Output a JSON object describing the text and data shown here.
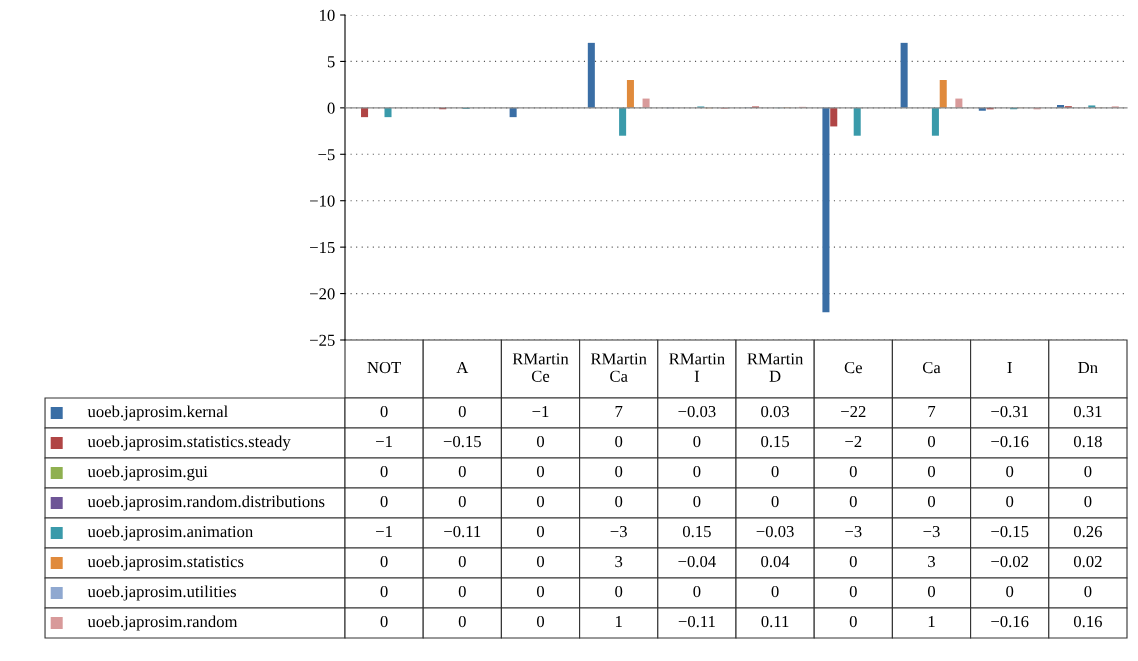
{
  "chart_data": {
    "type": "bar",
    "categories": [
      "NOT",
      "A",
      "RMartin\nCe",
      "RMartin\nCa",
      "RMartin\nI",
      "RMartin\nD",
      "Ce",
      "Ca",
      "I",
      "Dn"
    ],
    "series": [
      {
        "name": "uoeb.japrosim.kernal",
        "color": "#3a6ea5",
        "values": [
          0,
          0,
          -1,
          7,
          -0.03,
          0.03,
          -22,
          7,
          -0.31,
          0.31
        ]
      },
      {
        "name": "uoeb.japrosim.statistics.steady",
        "color": "#b04545",
        "values": [
          -1,
          -0.15,
          0,
          0,
          0,
          0.15,
          -2,
          0,
          -0.16,
          0.18
        ]
      },
      {
        "name": "uoeb.japrosim.gui",
        "color": "#8fb050",
        "values": [
          0,
          0,
          0,
          0,
          0,
          0,
          0,
          0,
          0,
          0
        ]
      },
      {
        "name": "uoeb.japrosim.random.distributions",
        "color": "#6e5596",
        "values": [
          0,
          0,
          0,
          0,
          0,
          0,
          0,
          0,
          0,
          0
        ]
      },
      {
        "name": "uoeb.japrosim.animation",
        "color": "#3a9aaa",
        "values": [
          -1,
          -0.11,
          0,
          -3,
          0.15,
          -0.03,
          -3,
          -3,
          -0.15,
          0.26
        ]
      },
      {
        "name": "uoeb.japrosim.statistics",
        "color": "#e08a3c",
        "values": [
          0,
          0,
          0,
          3,
          -0.04,
          0.04,
          0,
          3,
          -0.02,
          0.02
        ]
      },
      {
        "name": "uoeb.japrosim.utilities",
        "color": "#8fa8d0",
        "values": [
          0,
          0,
          0,
          0,
          0,
          0,
          0,
          0,
          0,
          0
        ]
      },
      {
        "name": "uoeb.japrosim.random",
        "color": "#d89a9a",
        "values": [
          0,
          0,
          0,
          1,
          -0.11,
          0.11,
          0,
          1,
          -0.16,
          0.16
        ]
      }
    ],
    "ylim": [
      -25,
      10
    ],
    "yticks": [
      -25,
      -20,
      -15,
      -10,
      -5,
      0,
      5,
      10
    ],
    "grid": "y",
    "data_labels": true,
    "legend": "bottom left"
  }
}
